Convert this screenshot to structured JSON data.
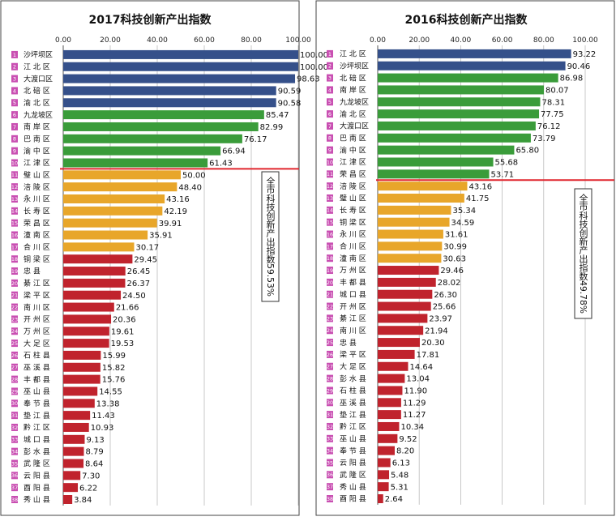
{
  "colors": {
    "blue": "#35508a",
    "green": "#3a9c3a",
    "orange": "#e8a62a",
    "red": "#c0232d",
    "line": "#e0262e",
    "rank_badge": "#c94fb2"
  },
  "chart_data": [
    {
      "type": "bar",
      "orientation": "horizontal",
      "title": "2017科技创新产出指数",
      "xlim": [
        0,
        100
      ],
      "xticks": [
        "0.00",
        "20.00",
        "40.00",
        "60.00",
        "80.00",
        "100.00"
      ],
      "grid": true,
      "annotation": "全市科技创新产出指数59.53%",
      "ranks": [
        "1",
        "2",
        "3",
        "4",
        "5",
        "6",
        "7",
        "8",
        "9",
        "10",
        "11",
        "12",
        "13",
        "14",
        "15",
        "16",
        "17",
        "18",
        "19",
        "20",
        "21",
        "22",
        "23",
        "24",
        "25",
        "26",
        "27",
        "28",
        "29",
        "30",
        "31",
        "32",
        "33",
        "34",
        "35",
        "36",
        "37",
        "38"
      ],
      "categories": [
        "沙坪坝区",
        "江 北 区",
        "大渡口区",
        "北 碚 区",
        "渝 北 区",
        "九龙坡区",
        "南 岸 区",
        "巴 南 区",
        "渝 中 区",
        "江 津 区",
        "璧 山 区",
        "涪 陵 区",
        "永 川 区",
        "长 寿 区",
        "荣 昌 区",
        "潼 南 区",
        "合 川 区",
        "铜 梁 区",
        "忠 县",
        "綦 江 区",
        "梁 平 区",
        "南 川 区",
        "开 州 区",
        "万 州 区",
        "大 足 区",
        "石 柱 县",
        "巫 溪 县",
        "丰 都 县",
        "巫 山 县",
        "奉 节 县",
        "垫 江 县",
        "黔 江 区",
        "城 口 县",
        "彭 水 县",
        "武 隆 区",
        "云 阳 县",
        "酉 阳 县",
        "秀 山 县"
      ],
      "labels": [
        "100.00",
        "100.00",
        "98.63",
        "90.59",
        "90.58",
        "85.47",
        "82.99",
        "76.17",
        "66.94",
        "61.43",
        "50.00",
        "48.40",
        "43.16",
        "42.19",
        "39.91",
        "35.91",
        "30.17",
        "29.45",
        "26.45",
        "26.37",
        "24.50",
        "21.66",
        "20.36",
        "19.61",
        "19.53",
        "15.99",
        "15.82",
        "15.76",
        "14.55",
        "13.38",
        "11.43",
        "10.93",
        "9.13",
        "8.79",
        "8.64",
        "7.30",
        "6.22",
        "3.84"
      ],
      "values": [
        100.0,
        100.0,
        98.63,
        90.59,
        90.58,
        85.47,
        82.99,
        76.17,
        66.94,
        61.43,
        50.0,
        48.4,
        43.16,
        42.19,
        39.91,
        35.91,
        30.17,
        29.45,
        26.45,
        26.37,
        24.5,
        21.66,
        20.36,
        19.61,
        19.53,
        15.99,
        15.82,
        15.76,
        14.55,
        13.38,
        11.43,
        10.93,
        9.13,
        8.79,
        8.64,
        7.3,
        6.22,
        3.84
      ],
      "color_groups": [
        "blue",
        "blue",
        "blue",
        "blue",
        "blue",
        "green",
        "green",
        "green",
        "green",
        "green",
        "orange",
        "orange",
        "orange",
        "orange",
        "orange",
        "orange",
        "orange",
        "red",
        "red",
        "red",
        "red",
        "red",
        "red",
        "red",
        "red",
        "red",
        "red",
        "red",
        "red",
        "red",
        "red",
        "red",
        "red",
        "red",
        "red",
        "red",
        "red",
        "red"
      ],
      "divider_after_rank": 10
    },
    {
      "type": "bar",
      "orientation": "horizontal",
      "title": "2016科技创新产出指数",
      "xlim": [
        0,
        100
      ],
      "xticks": [
        "0.00",
        "20.00",
        "40.00",
        "60.00",
        "80.00",
        "100.00"
      ],
      "grid": true,
      "annotation": "全市科技创新产出指数49.78%",
      "ranks": [
        "1",
        "2",
        "3",
        "4",
        "5",
        "6",
        "7",
        "8",
        "9",
        "10",
        "11",
        "12",
        "13",
        "14",
        "15",
        "16",
        "17",
        "18",
        "19",
        "20",
        "21",
        "22",
        "23",
        "24",
        "25",
        "26",
        "27",
        "28",
        "29",
        "30",
        "31",
        "32",
        "33",
        "34",
        "35",
        "36",
        "37",
        "38"
      ],
      "categories": [
        "江 北 区",
        "沙坪坝区",
        "北 碚 区",
        "南 岸 区",
        "九龙坡区",
        "渝 北 区",
        "大渡口区",
        "巴 南 区",
        "渝 中 区",
        "江 津 区",
        "荣 昌 区",
        "涪 陵 区",
        "璧 山 区",
        "长 寿 区",
        "铜 梁 区",
        "永 川 区",
        "合 川 区",
        "潼 南 区",
        "万 州 区",
        "丰 都 县",
        "城 口 县",
        "开 州 区",
        "綦 江 区",
        "南 川 区",
        "忠 县",
        "梁 平 区",
        "大 足 区",
        "彭 水 县",
        "石 柱 县",
        "巫 溪 县",
        "垫 江 县",
        "黔 江 区",
        "巫 山 县",
        "奉 节 县",
        "云 阳 县",
        "武 隆 区",
        "秀 山 县",
        "酉 阳 县"
      ],
      "labels": [
        "93.22",
        "90.46",
        "86.98",
        "80.07",
        "78.31",
        "77.75",
        "76.12",
        "73.79",
        "65.80",
        "55.68",
        "53.71",
        "43.16",
        "41.75",
        "35.34",
        "34.59",
        "31.61",
        "30.99",
        "30.63",
        "29.46",
        "28.02",
        "26.30",
        "25.66",
        "23.97",
        "21.94",
        "20.30",
        "17.81",
        "14.64",
        "13.04",
        "11.90",
        "11.29",
        "11.27",
        "10.34",
        "9.52",
        "8.20",
        "6.13",
        "5.48",
        "5.31",
        "2.64"
      ],
      "values": [
        93.22,
        90.46,
        86.98,
        80.07,
        78.31,
        77.75,
        76.12,
        73.79,
        65.8,
        55.68,
        53.71,
        43.16,
        41.75,
        35.34,
        34.59,
        31.61,
        30.99,
        30.63,
        29.46,
        28.02,
        26.3,
        25.66,
        23.97,
        21.94,
        20.3,
        17.81,
        14.64,
        13.04,
        11.9,
        11.29,
        11.27,
        10.34,
        9.52,
        8.2,
        6.13,
        5.48,
        5.31,
        2.64
      ],
      "color_groups": [
        "blue",
        "blue",
        "green",
        "green",
        "green",
        "green",
        "green",
        "green",
        "green",
        "green",
        "green",
        "orange",
        "orange",
        "orange",
        "orange",
        "orange",
        "orange",
        "orange",
        "red",
        "red",
        "red",
        "red",
        "red",
        "red",
        "red",
        "red",
        "red",
        "red",
        "red",
        "red",
        "red",
        "red",
        "red",
        "red",
        "red",
        "red",
        "red",
        "red"
      ],
      "divider_after_rank": 11
    }
  ]
}
